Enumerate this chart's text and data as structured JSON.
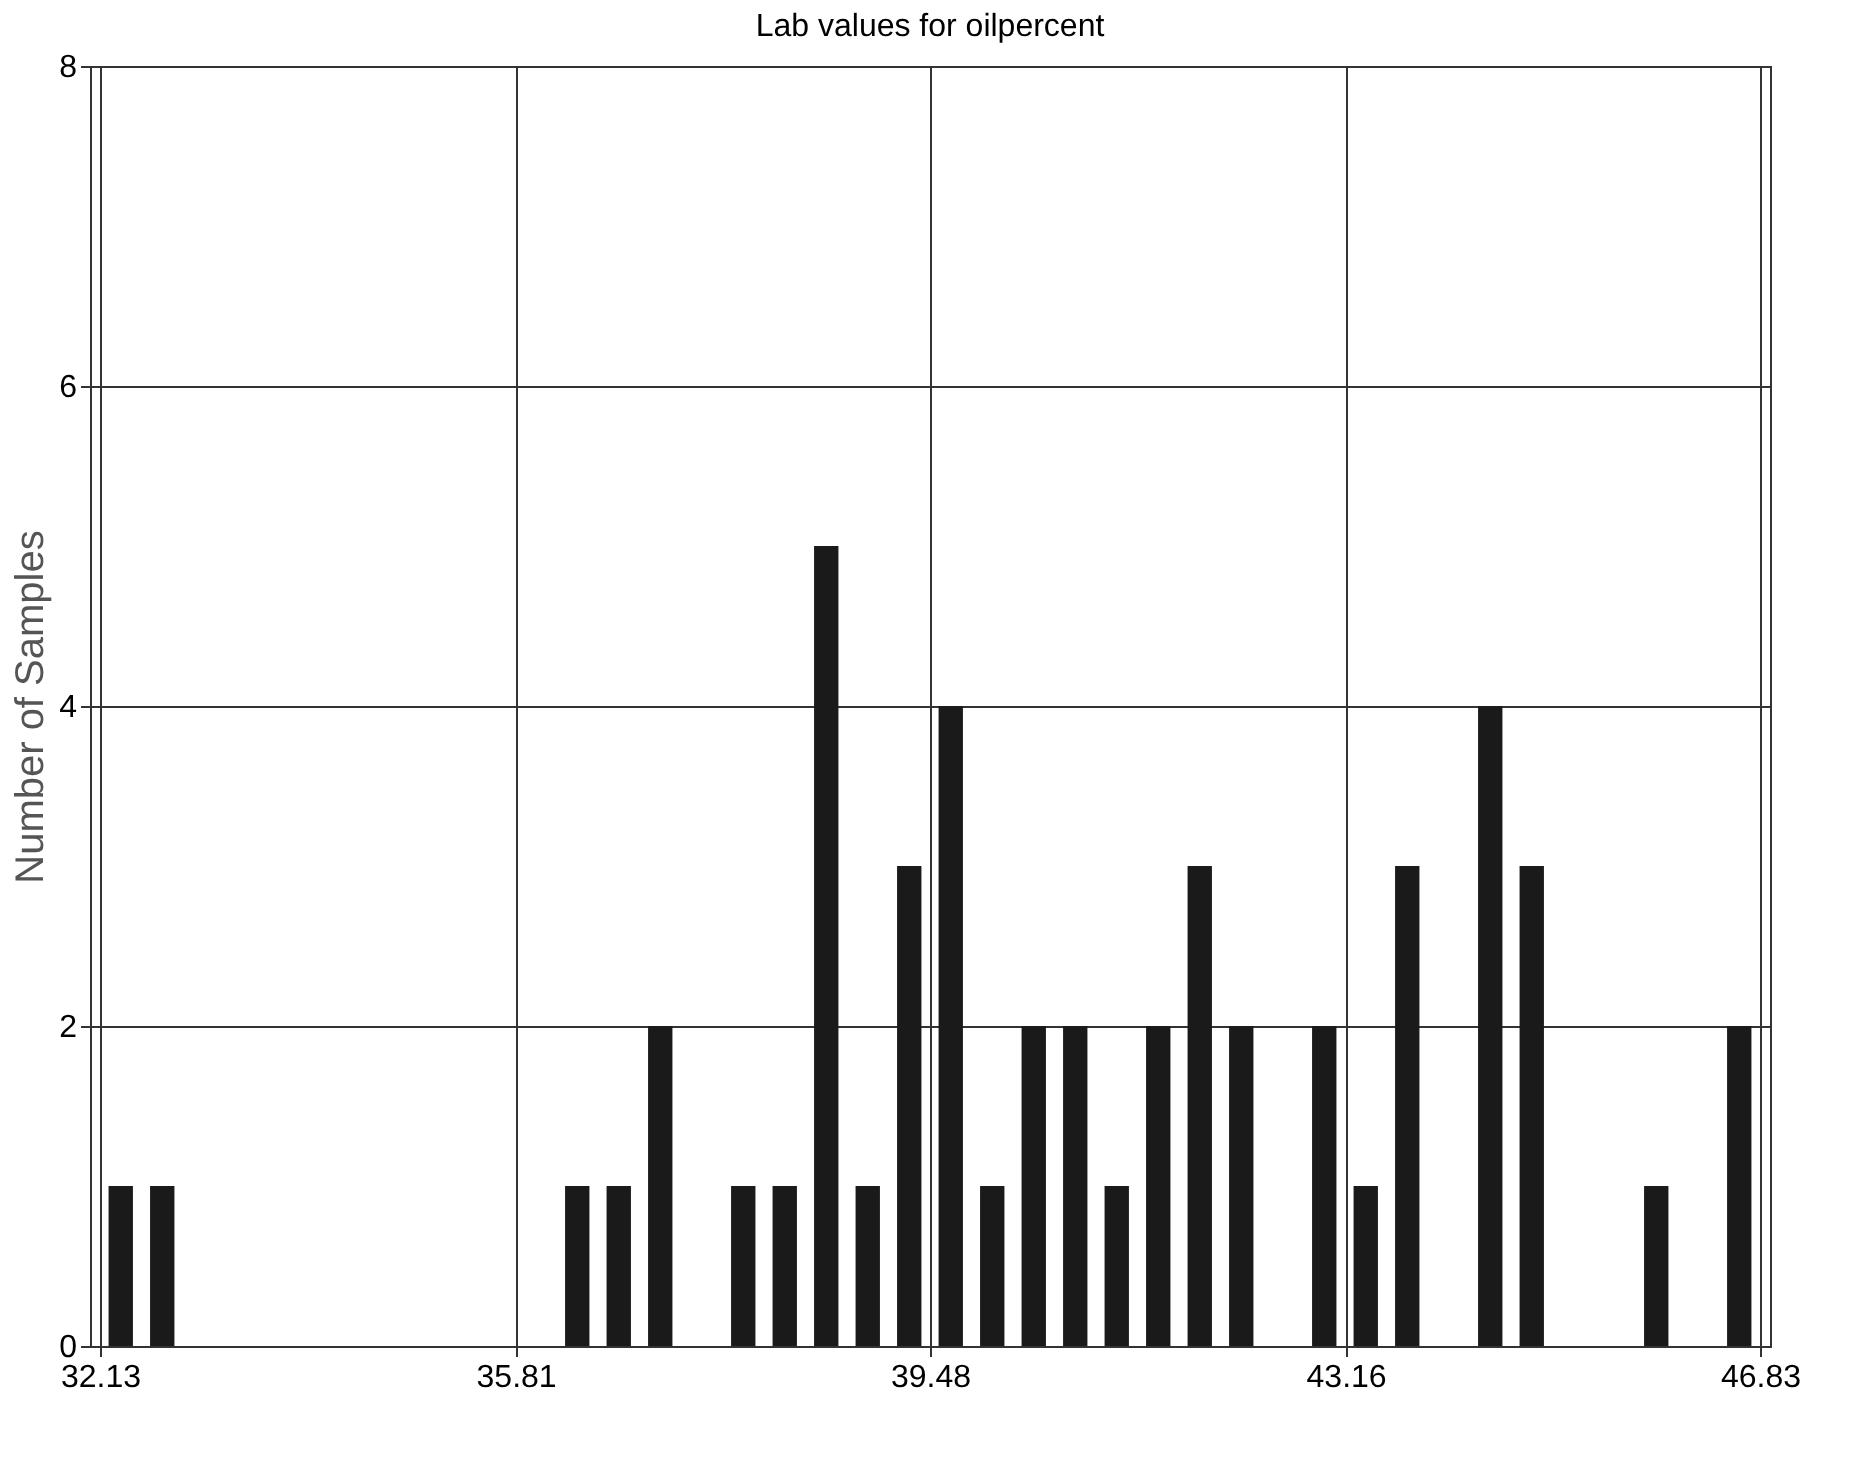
{
  "chart_data": {
    "type": "histogram",
    "title": "Lab values for oilpercent",
    "ylabel": "Number of Samples",
    "bins": [
      32.13,
      32.4975,
      32.865,
      33.2325,
      33.6,
      33.9675,
      34.335,
      34.7025,
      35.07,
      35.4375,
      35.805,
      36.1725,
      36.54,
      36.9075,
      37.275,
      37.6425,
      38.01,
      38.3775,
      38.745,
      39.1125,
      39.48,
      39.8475,
      40.215,
      40.5825,
      40.95,
      41.3175,
      41.685,
      42.0525,
      42.42,
      42.7875,
      43.155,
      43.5225,
      43.89,
      44.2575,
      44.625,
      44.9925,
      45.36,
      45.7275,
      46.095,
      46.4625,
      46.83
    ],
    "values": [
      1,
      1,
      0,
      0,
      0,
      0,
      0,
      0,
      0,
      0,
      0,
      1,
      1,
      2,
      0,
      1,
      1,
      5,
      1,
      3,
      4,
      1,
      2,
      2,
      1,
      2,
      3,
      2,
      0,
      2,
      1,
      3,
      0,
      4,
      3,
      0,
      0,
      1,
      0,
      2
    ],
    "color": "#1a1a1a",
    "xlim": [
      32.13,
      46.83
    ],
    "xticks": [
      32.13,
      35.81,
      39.48,
      43.16,
      46.83
    ],
    "ylim": [
      0,
      8
    ],
    "yticks": [
      0,
      2,
      4,
      6,
      8
    ],
    "grid": true
  }
}
